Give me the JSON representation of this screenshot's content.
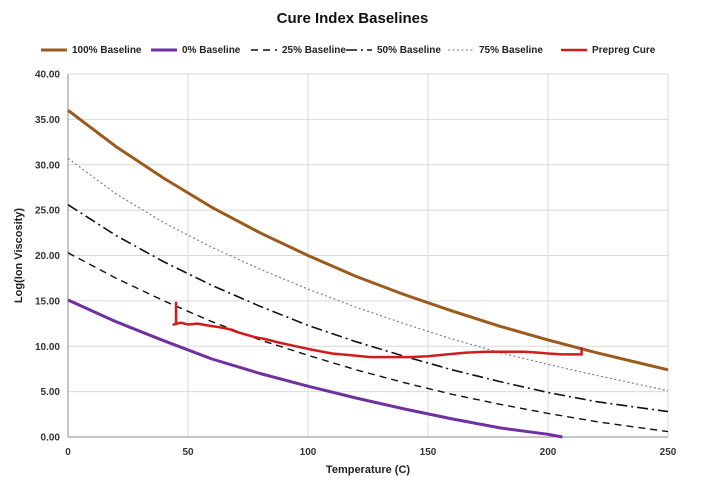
{
  "chart_data": {
    "type": "line",
    "title": "Cure Index Baselines",
    "xlabel": "Temperature (C)",
    "ylabel": "Log(Ion Viscosity)",
    "xlim": [
      0,
      250
    ],
    "ylim": [
      0,
      40
    ],
    "x_ticks": [
      "0",
      "50",
      "100",
      "150",
      "200",
      "250"
    ],
    "y_ticks": [
      "0.00",
      "5.00",
      "10.00",
      "15.00",
      "20.00",
      "25.00",
      "30.00",
      "35.00",
      "40.00"
    ],
    "grid": true,
    "legend_position": "top",
    "series": [
      {
        "name": "100% Baseline",
        "color": "#9c5a1e",
        "style": "solid",
        "width": 3,
        "points": [
          [
            0,
            36.0
          ],
          [
            20,
            32.0
          ],
          [
            40,
            28.5
          ],
          [
            60,
            25.3
          ],
          [
            80,
            22.5
          ],
          [
            100,
            20.0
          ],
          [
            120,
            17.7
          ],
          [
            140,
            15.7
          ],
          [
            160,
            13.9
          ],
          [
            180,
            12.2
          ],
          [
            200,
            10.7
          ],
          [
            220,
            9.3
          ],
          [
            250,
            7.4
          ]
        ]
      },
      {
        "name": "0% Baseline",
        "color": "#7030a0",
        "style": "solid",
        "width": 3,
        "points": [
          [
            0,
            15.1
          ],
          [
            20,
            12.7
          ],
          [
            40,
            10.6
          ],
          [
            60,
            8.6
          ],
          [
            80,
            7.0
          ],
          [
            100,
            5.6
          ],
          [
            120,
            4.3
          ],
          [
            140,
            3.1
          ],
          [
            160,
            2.0
          ],
          [
            180,
            1.0
          ],
          [
            200,
            0.3
          ],
          [
            206,
            0.0
          ]
        ]
      },
      {
        "name": "25% Baseline",
        "color": "#111111",
        "style": "dash",
        "width": 1.4,
        "points": [
          [
            0,
            20.3
          ],
          [
            20,
            17.5
          ],
          [
            40,
            15.0
          ],
          [
            60,
            12.7
          ],
          [
            80,
            10.7
          ],
          [
            100,
            9.0
          ],
          [
            120,
            7.4
          ],
          [
            140,
            6.0
          ],
          [
            160,
            4.7
          ],
          [
            180,
            3.6
          ],
          [
            200,
            2.6
          ],
          [
            220,
            1.7
          ],
          [
            250,
            0.6
          ]
        ]
      },
      {
        "name": "50% Baseline",
        "color": "#111111",
        "style": "dashdot",
        "width": 1.6,
        "points": [
          [
            0,
            25.6
          ],
          [
            20,
            22.2
          ],
          [
            40,
            19.3
          ],
          [
            60,
            16.7
          ],
          [
            80,
            14.4
          ],
          [
            100,
            12.3
          ],
          [
            120,
            10.5
          ],
          [
            140,
            8.9
          ],
          [
            160,
            7.4
          ],
          [
            180,
            6.1
          ],
          [
            200,
            4.9
          ],
          [
            220,
            3.9
          ],
          [
            250,
            2.8
          ]
        ]
      },
      {
        "name": "75% Baseline",
        "color": "#777777",
        "style": "dot",
        "width": 1.1,
        "points": [
          [
            0,
            30.7
          ],
          [
            20,
            26.8
          ],
          [
            40,
            23.6
          ],
          [
            60,
            20.9
          ],
          [
            80,
            18.5
          ],
          [
            100,
            16.3
          ],
          [
            120,
            14.3
          ],
          [
            140,
            12.5
          ],
          [
            160,
            10.8
          ],
          [
            180,
            9.3
          ],
          [
            200,
            8.0
          ],
          [
            220,
            6.8
          ],
          [
            250,
            5.1
          ]
        ]
      },
      {
        "name": "Prepreg Cure",
        "color": "#d01c1c",
        "style": "solid",
        "width": 2.5,
        "points": [
          [
            45,
            14.9
          ],
          [
            45,
            12.5
          ],
          [
            44,
            12.4
          ],
          [
            47,
            12.6
          ],
          [
            50,
            12.4
          ],
          [
            54,
            12.5
          ],
          [
            58,
            12.3
          ],
          [
            63,
            12.1
          ],
          [
            67,
            11.9
          ],
          [
            70,
            11.6
          ],
          [
            74,
            11.3
          ],
          [
            78,
            11.0
          ],
          [
            82,
            10.8
          ],
          [
            88,
            10.4
          ],
          [
            95,
            10.0
          ],
          [
            102,
            9.6
          ],
          [
            110,
            9.2
          ],
          [
            118,
            9.0
          ],
          [
            126,
            8.8
          ],
          [
            134,
            8.8
          ],
          [
            142,
            8.8
          ],
          [
            150,
            8.9
          ],
          [
            158,
            9.1
          ],
          [
            166,
            9.3
          ],
          [
            174,
            9.4
          ],
          [
            182,
            9.4
          ],
          [
            190,
            9.4
          ],
          [
            196,
            9.3
          ],
          [
            200,
            9.2
          ],
          [
            206,
            9.1
          ],
          [
            214,
            9.1
          ],
          [
            214,
            9.9
          ]
        ]
      }
    ]
  }
}
